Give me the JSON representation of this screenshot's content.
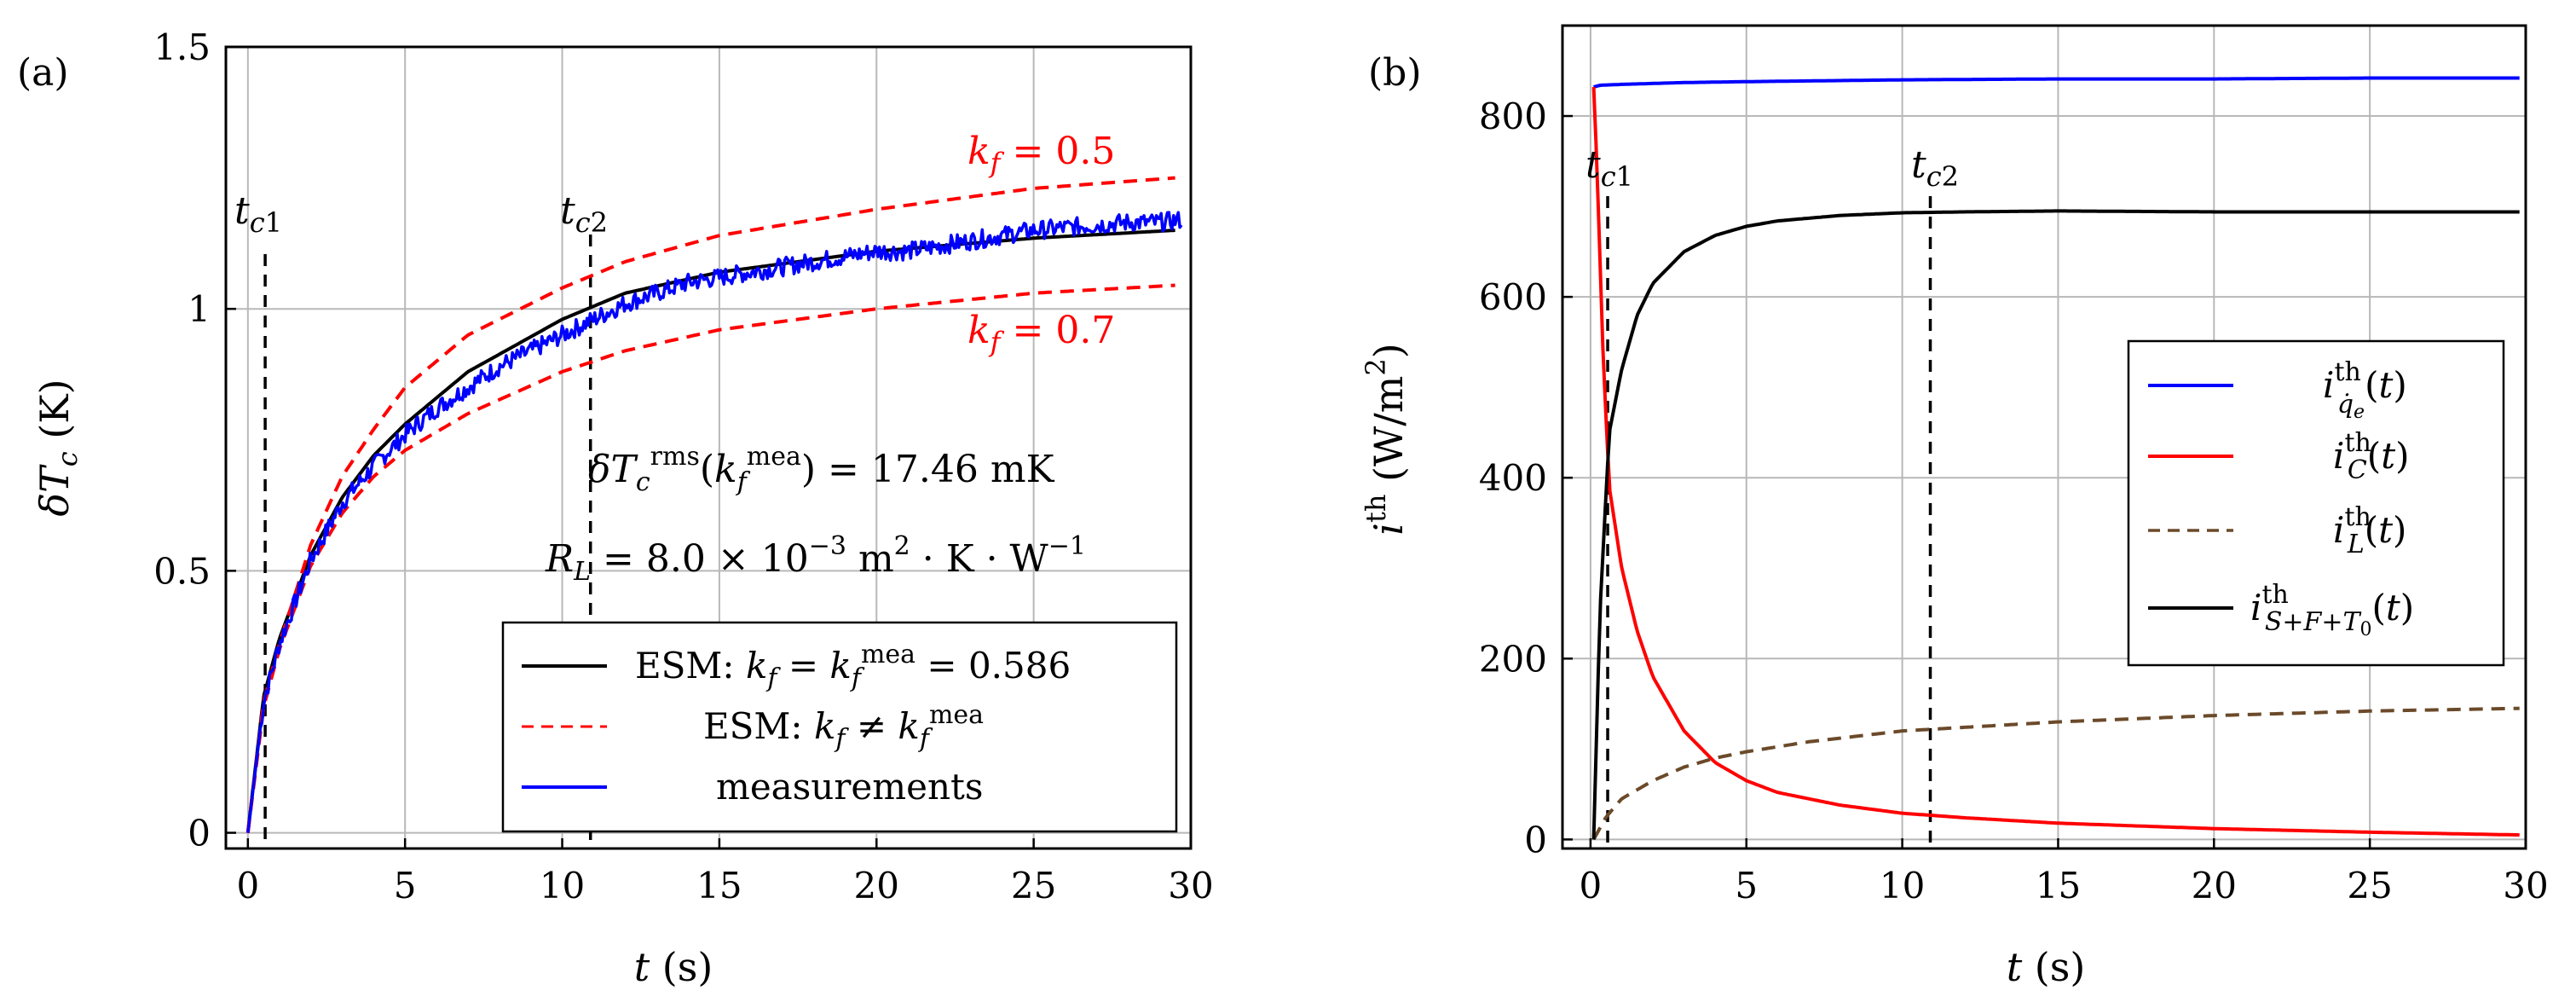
{
  "chart_data": [
    {
      "panel_label": "(a)",
      "type": "line",
      "xlabel": "t (s)",
      "ylabel": "δT_c (K)",
      "xlim": [
        -0.7,
        30
      ],
      "ylim": [
        -0.03,
        1.5
      ],
      "xticks": [
        0,
        5,
        10,
        15,
        20,
        25,
        30
      ],
      "xtick_labels": [
        "0",
        "5",
        "10",
        "15",
        "20",
        "25",
        "30"
      ],
      "yticks": [
        0,
        0.5,
        1,
        1.5
      ],
      "ytick_labels": [
        "0",
        "0.5",
        "1",
        "1.5"
      ],
      "grid": true,
      "vlines": [
        {
          "x": 0.55,
          "label": "t_c1"
        },
        {
          "x": 10.9,
          "label": "t_c2"
        }
      ],
      "annotations": [
        {
          "text": "δT_c^rms(k_f^mea) = 17.46 mK",
          "anchor": "right",
          "at": [
            29.5,
            0.69
          ]
        },
        {
          "text": "R_L = 8.0 × 10^−3 m²·K·W^−1",
          "anchor": "right",
          "at": [
            29.5,
            0.52
          ]
        },
        {
          "text": "k_f = 0.5",
          "color": "red",
          "anchor": "right",
          "at": [
            29.5,
            1.27
          ]
        },
        {
          "text": "k_f = 0.7",
          "color": "red",
          "anchor": "right",
          "at": [
            29.5,
            0.94
          ]
        }
      ],
      "legend": {
        "position": "bottom-right",
        "entries": [
          {
            "label": "ESM: k_f = k_f^mea = 0.586",
            "color": "#000000",
            "style": "solid"
          },
          {
            "label": "ESM: k_f ≠ k_f^mea",
            "color": "#ff0000",
            "style": "dashed"
          },
          {
            "label": "measurements",
            "color": "#0000ff",
            "style": "solid"
          }
        ]
      },
      "series": [
        {
          "name": "ESM k_f = 0.586",
          "color": "#000000",
          "style": "solid",
          "x": [
            0,
            0.5,
            1,
            2,
            3,
            4,
            5,
            7,
            10,
            12,
            15,
            20,
            25,
            29.5
          ],
          "y": [
            0,
            0.26,
            0.37,
            0.53,
            0.64,
            0.72,
            0.78,
            0.88,
            0.98,
            1.03,
            1.07,
            1.11,
            1.135,
            1.15
          ]
        },
        {
          "name": "ESM k_f = 0.5",
          "color": "#ff0000",
          "style": "dashed",
          "x": [
            0,
            0.5,
            1,
            2,
            3,
            4,
            5,
            7,
            10,
            12,
            15,
            20,
            25,
            29.5
          ],
          "y": [
            0,
            0.25,
            0.36,
            0.55,
            0.68,
            0.77,
            0.85,
            0.95,
            1.04,
            1.09,
            1.14,
            1.19,
            1.23,
            1.25
          ]
        },
        {
          "name": "ESM k_f = 0.7",
          "color": "#ff0000",
          "style": "dashed",
          "x": [
            0,
            0.5,
            1,
            2,
            3,
            4,
            5,
            7,
            10,
            12,
            15,
            20,
            25,
            29.5
          ],
          "y": [
            0,
            0.24,
            0.35,
            0.51,
            0.61,
            0.68,
            0.73,
            0.8,
            0.88,
            0.92,
            0.96,
            1.0,
            1.03,
            1.045
          ]
        },
        {
          "name": "measurements",
          "color": "#0000ff",
          "style": "solid",
          "noisy": true,
          "x": [
            0,
            0.5,
            1,
            2,
            3,
            4,
            5,
            6,
            7,
            8,
            9,
            10,
            11,
            12,
            13,
            14,
            15,
            16,
            17,
            18,
            19,
            20,
            21,
            22,
            23,
            24,
            25,
            26,
            27,
            28,
            29,
            29.7
          ],
          "y": [
            0,
            0.25,
            0.36,
            0.52,
            0.63,
            0.7,
            0.76,
            0.81,
            0.85,
            0.89,
            0.92,
            0.95,
            0.98,
            1.01,
            1.03,
            1.05,
            1.06,
            1.07,
            1.08,
            1.09,
            1.1,
            1.11,
            1.11,
            1.12,
            1.13,
            1.14,
            1.15,
            1.155,
            1.16,
            1.165,
            1.165,
            1.17
          ]
        }
      ]
    },
    {
      "panel_label": "(b)",
      "type": "line",
      "xlabel": "t (s)",
      "ylabel": "i^th (W/m²)",
      "xlim": [
        -0.9,
        30
      ],
      "ylim": [
        -10,
        900
      ],
      "xticks": [
        0,
        5,
        10,
        15,
        20,
        25,
        30
      ],
      "xtick_labels": [
        "0",
        "5",
        "10",
        "15",
        "20",
        "25",
        "30"
      ],
      "yticks": [
        0,
        200,
        400,
        600,
        800
      ],
      "ytick_labels": [
        "0",
        "200",
        "400",
        "600",
        "800"
      ],
      "grid": true,
      "vlines": [
        {
          "x": 0.55,
          "label": "t_c1"
        },
        {
          "x": 10.9,
          "label": "t_c2"
        }
      ],
      "legend": {
        "position": "center-right",
        "entries": [
          {
            "label": "i_q̇e^th(t)",
            "color": "#0000ff",
            "style": "solid"
          },
          {
            "label": "i_C^th(t)",
            "color": "#ff0000",
            "style": "solid"
          },
          {
            "label": "i_L^th(t)",
            "color": "#6b4a2a",
            "style": "dashed"
          },
          {
            "label": "i_S+F+T0^th(t)",
            "color": "#000000",
            "style": "solid"
          }
        ]
      },
      "series": [
        {
          "name": "i_qe",
          "color": "#0000ff",
          "style": "solid",
          "x": [
            0.1,
            0.3,
            1,
            3,
            5,
            10,
            15,
            20,
            25,
            29.8
          ],
          "y": [
            832,
            834,
            835,
            837,
            838,
            840,
            841,
            841,
            842,
            842
          ]
        },
        {
          "name": "i_C",
          "color": "#ff0000",
          "style": "solid",
          "x": [
            0.1,
            0.2,
            0.4,
            0.6,
            1.0,
            1.5,
            2,
            3,
            4,
            5,
            6,
            8,
            10,
            12,
            15,
            20,
            25,
            29.8
          ],
          "y": [
            832,
            750,
            540,
            390,
            300,
            230,
            180,
            120,
            85,
            65,
            52,
            38,
            29,
            24,
            18,
            12,
            8,
            5
          ]
        },
        {
          "name": "i_L",
          "color": "#6b4a2a",
          "style": "dashed",
          "x": [
            0.1,
            0.5,
            1,
            2,
            3,
            4,
            5,
            7,
            10,
            15,
            20,
            25,
            29.8
          ],
          "y": [
            0,
            25,
            45,
            65,
            80,
            90,
            97,
            108,
            120,
            130,
            137,
            142,
            145
          ]
        },
        {
          "name": "i_S+F+T0",
          "color": "#000000",
          "style": "solid",
          "x": [
            0.1,
            0.3,
            0.6,
            1,
            1.5,
            2,
            3,
            4,
            5,
            6,
            8,
            10,
            12,
            15,
            20,
            25,
            29.8
          ],
          "y": [
            0,
            250,
            450,
            520,
            580,
            615,
            650,
            668,
            678,
            684,
            690,
            693,
            694,
            695,
            694,
            694,
            694
          ]
        }
      ]
    }
  ]
}
